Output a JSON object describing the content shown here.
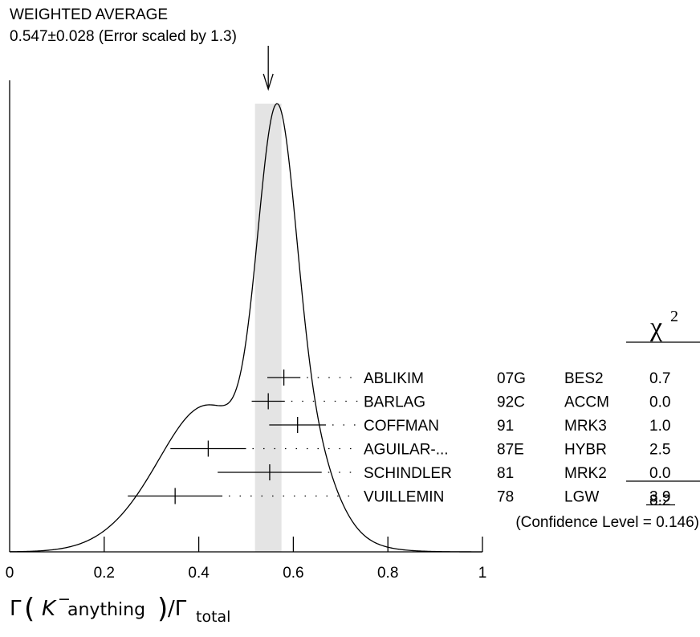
{
  "chart_data": {
    "type": "ideogram",
    "title_line1": "WEIGHTED AVERAGE",
    "title_line2": "0.547±0.028 (Error scaled by 1.3)",
    "average": {
      "value": 0.547,
      "error": 0.028
    },
    "xlim": [
      0,
      1
    ],
    "x_ticks": [
      0,
      0.2,
      0.4,
      0.6,
      0.8,
      1
    ],
    "x_tick_labels": [
      "0",
      "0.2",
      "0.4",
      "0.6",
      "0.8",
      "1"
    ],
    "xlabel": {
      "gamma": "Γ",
      "lparen": "(",
      "particle": "K",
      "charge": "−",
      "rest": " anything",
      "rparen": ")",
      "slash": "/Γ",
      "sub": "total"
    },
    "chi2_header": "χ",
    "chi2_header_exp": "2",
    "measurements": [
      {
        "author": "ABLIKIM",
        "year": "07G",
        "experiment": "BES2",
        "chi2": "0.7",
        "value": 0.58,
        "error_lo": 0.035,
        "error_hi": 0.035
      },
      {
        "author": "BARLAG",
        "year": "92C",
        "experiment": "ACCM",
        "chi2": "0.0",
        "value": 0.547,
        "error_lo": 0.035,
        "error_hi": 0.035
      },
      {
        "author": "COFFMAN",
        "year": "91",
        "experiment": "MRK3",
        "chi2": "1.0",
        "value": 0.609,
        "error_lo": 0.06,
        "error_hi": 0.06
      },
      {
        "author": "AGUILAR-...",
        "year": "87E",
        "experiment": "HYBR",
        "chi2": "2.5",
        "value": 0.42,
        "error_lo": 0.08,
        "error_hi": 0.08
      },
      {
        "author": "SCHINDLER",
        "year": "81",
        "experiment": "MRK2",
        "chi2": "0.0",
        "value": 0.55,
        "error_lo": 0.11,
        "error_hi": 0.11
      },
      {
        "author": "VUILLEMIN",
        "year": "78",
        "experiment": "LGW",
        "chi2": "3.9",
        "value": 0.35,
        "error_lo": 0.1,
        "error_hi": 0.1
      }
    ],
    "chi2_total": "8.2",
    "confidence_text": "(Confidence Level = 0.146)"
  }
}
